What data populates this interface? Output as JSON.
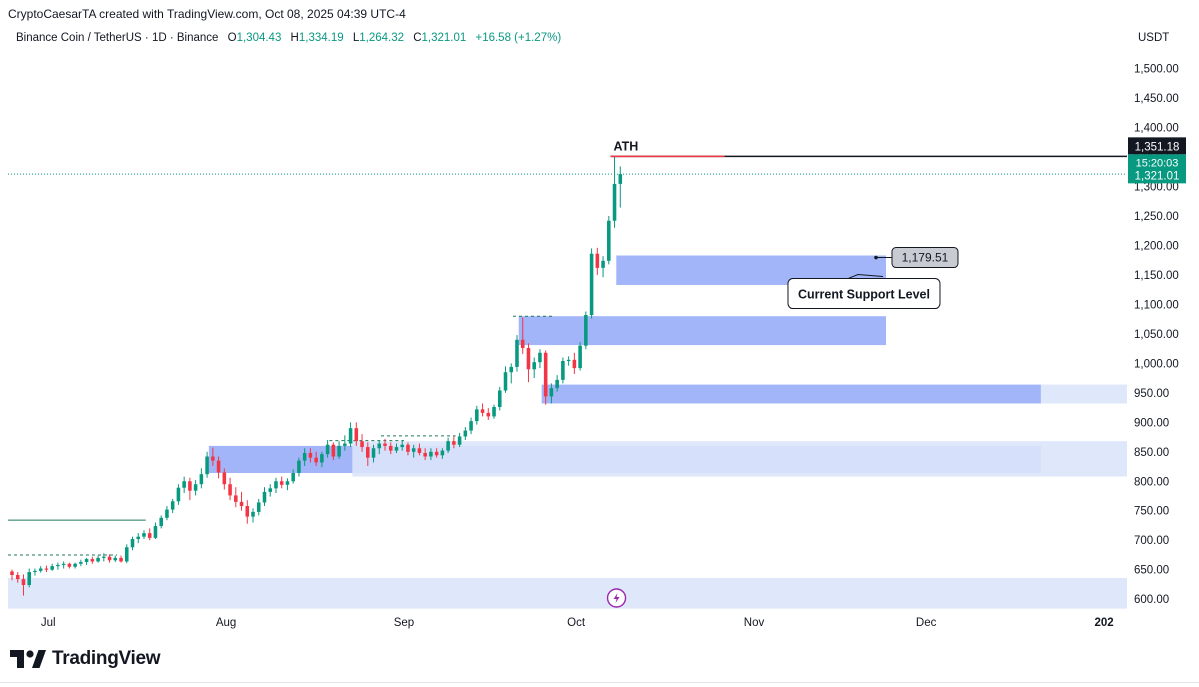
{
  "header": {
    "credit": "CryptoCaesarTA created with TradingView.com, Oct 08, 2025 04:39 UTC-4"
  },
  "symbol": {
    "name": "Binance Coin / TetherUS · 1D · Binance",
    "o_label": "O",
    "o": "1,304.43",
    "h_label": "H",
    "h": "1,334.19",
    "l_label": "L",
    "l": "1,264.32",
    "c_label": "C",
    "c": "1,321.01",
    "change": "+16.58 (+1.27%)"
  },
  "brand": {
    "logo_text": "TradingView"
  },
  "colors": {
    "up": "#089981",
    "down": "#f23645",
    "zone": "#6f8ef5",
    "zone_light": "#dbe4fb",
    "dark": "#131722"
  },
  "chart_data": {
    "type": "candlestick",
    "quote_unit": "USDT",
    "y_ticks": [
      "1,500.00",
      "1,450.00",
      "1,400.00",
      "1,350.00",
      "1,300.00",
      "1,250.00",
      "1,200.00",
      "1,150.00",
      "1,100.00",
      "1,050.00",
      "1,000.00",
      "950.00",
      "900.00",
      "850.00",
      "800.00",
      "750.00",
      "700.00",
      "650.00",
      "600.00"
    ],
    "y_tick_values": [
      1500,
      1450,
      1400,
      1350,
      1300,
      1250,
      1200,
      1150,
      1100,
      1050,
      1000,
      950,
      900,
      850,
      800,
      750,
      700,
      650,
      600
    ],
    "ylim": [
      585,
      1535
    ],
    "x_labels": [
      "Jul",
      "Aug",
      "Sep",
      "Oct",
      "Nov",
      "Dec",
      "202"
    ],
    "x_label_dates": [
      "2025-07-01",
      "2025-08-01",
      "2025-09-01",
      "2025-10-01",
      "2025-11-01",
      "2025-12-01",
      "2026-01-01"
    ],
    "x_range": [
      "2025-06-24",
      "2026-01-05"
    ],
    "start_date": "2025-06-24",
    "last_price_tag": {
      "price": "1,321.01",
      "countdown": "15:20:03",
      "value": 1321.01
    },
    "ath": {
      "label": "ATH",
      "tag": "1,351.18",
      "value": 1351.18,
      "from": "2025-10-07"
    },
    "support": {
      "label": "Current Support Level",
      "price_tag": "1,179.51",
      "value": 1179.51
    },
    "zones": [
      {
        "top": 1183,
        "bottom": 1133,
        "from": "2025-10-08",
        "to": "2025-11-24",
        "shade": "mid"
      },
      {
        "top": 1080,
        "bottom": 1031,
        "from": "2025-09-21",
        "to": "2025-11-24",
        "shade": "mid"
      },
      {
        "top": 964,
        "bottom": 932,
        "from": "2025-09-25",
        "to": "2025-12-21",
        "shade": "mid"
      },
      {
        "top": 964,
        "bottom": 932,
        "from": "2025-12-21",
        "to": "2026-01-05",
        "shade": "light"
      },
      {
        "top": 860,
        "bottom": 814,
        "from": "2025-07-29",
        "to": "2025-12-21",
        "shade": "mid"
      },
      {
        "top": 868,
        "bottom": 808,
        "from": "2025-08-23",
        "to": "2026-01-05",
        "shade": "light"
      },
      {
        "top": 636,
        "bottom": 584,
        "from": "2025-06-24",
        "to": "2026-01-05",
        "shade": "light"
      }
    ],
    "hlines": [
      {
        "value": 734,
        "from": "2025-06-24",
        "to": "2025-07-18",
        "style": "solid"
      },
      {
        "value": 675,
        "from": "2025-06-24",
        "to": "2025-07-13",
        "style": "dashed"
      },
      {
        "value": 1080,
        "from": "2025-09-20",
        "to": "2025-09-27",
        "style": "dashed"
      },
      {
        "value": 869,
        "from": "2025-08-19",
        "to": "2025-09-01",
        "style": "dashed"
      },
      {
        "value": 877,
        "from": "2025-08-28",
        "to": "2025-09-10",
        "style": "dashed"
      }
    ],
    "candles": [
      {
        "date": "2025-06-24",
        "o": 647,
        "h": 650,
        "l": 632,
        "c": 641
      },
      {
        "date": "2025-06-25",
        "o": 641,
        "h": 646,
        "l": 628,
        "c": 634
      },
      {
        "date": "2025-06-26",
        "o": 634,
        "h": 642,
        "l": 606,
        "c": 624
      },
      {
        "date": "2025-06-27",
        "o": 624,
        "h": 652,
        "l": 620,
        "c": 646
      },
      {
        "date": "2025-06-28",
        "o": 646,
        "h": 652,
        "l": 640,
        "c": 648
      },
      {
        "date": "2025-06-29",
        "o": 648,
        "h": 656,
        "l": 645,
        "c": 652
      },
      {
        "date": "2025-06-30",
        "o": 652,
        "h": 657,
        "l": 646,
        "c": 650
      },
      {
        "date": "2025-07-01",
        "o": 650,
        "h": 660,
        "l": 648,
        "c": 656
      },
      {
        "date": "2025-07-02",
        "o": 656,
        "h": 662,
        "l": 650,
        "c": 658
      },
      {
        "date": "2025-07-03",
        "o": 658,
        "h": 664,
        "l": 652,
        "c": 660
      },
      {
        "date": "2025-07-04",
        "o": 660,
        "h": 662,
        "l": 652,
        "c": 655
      },
      {
        "date": "2025-07-05",
        "o": 655,
        "h": 662,
        "l": 652,
        "c": 660
      },
      {
        "date": "2025-07-06",
        "o": 660,
        "h": 667,
        "l": 656,
        "c": 663
      },
      {
        "date": "2025-07-07",
        "o": 663,
        "h": 670,
        "l": 658,
        "c": 668
      },
      {
        "date": "2025-07-08",
        "o": 668,
        "h": 672,
        "l": 660,
        "c": 664
      },
      {
        "date": "2025-07-09",
        "o": 664,
        "h": 674,
        "l": 662,
        "c": 670
      },
      {
        "date": "2025-07-10",
        "o": 670,
        "h": 678,
        "l": 664,
        "c": 672
      },
      {
        "date": "2025-07-11",
        "o": 672,
        "h": 676,
        "l": 662,
        "c": 666
      },
      {
        "date": "2025-07-12",
        "o": 666,
        "h": 674,
        "l": 663,
        "c": 670
      },
      {
        "date": "2025-07-13",
        "o": 670,
        "h": 674,
        "l": 662,
        "c": 664
      },
      {
        "date": "2025-07-14",
        "o": 664,
        "h": 693,
        "l": 661,
        "c": 688
      },
      {
        "date": "2025-07-15",
        "o": 688,
        "h": 706,
        "l": 683,
        "c": 702
      },
      {
        "date": "2025-07-16",
        "o": 702,
        "h": 712,
        "l": 695,
        "c": 706
      },
      {
        "date": "2025-07-17",
        "o": 706,
        "h": 717,
        "l": 702,
        "c": 712
      },
      {
        "date": "2025-07-18",
        "o": 712,
        "h": 720,
        "l": 700,
        "c": 704
      },
      {
        "date": "2025-07-19",
        "o": 704,
        "h": 730,
        "l": 702,
        "c": 724
      },
      {
        "date": "2025-07-20",
        "o": 724,
        "h": 742,
        "l": 720,
        "c": 738
      },
      {
        "date": "2025-07-21",
        "o": 738,
        "h": 758,
        "l": 734,
        "c": 752
      },
      {
        "date": "2025-07-22",
        "o": 752,
        "h": 770,
        "l": 746,
        "c": 766
      },
      {
        "date": "2025-07-23",
        "o": 766,
        "h": 795,
        "l": 760,
        "c": 789
      },
      {
        "date": "2025-07-24",
        "o": 789,
        "h": 808,
        "l": 780,
        "c": 800
      },
      {
        "date": "2025-07-25",
        "o": 800,
        "h": 806,
        "l": 768,
        "c": 784
      },
      {
        "date": "2025-07-26",
        "o": 784,
        "h": 802,
        "l": 776,
        "c": 795
      },
      {
        "date": "2025-07-27",
        "o": 795,
        "h": 822,
        "l": 788,
        "c": 812
      },
      {
        "date": "2025-07-28",
        "o": 812,
        "h": 850,
        "l": 806,
        "c": 842
      },
      {
        "date": "2025-07-29",
        "o": 842,
        "h": 857,
        "l": 826,
        "c": 835
      },
      {
        "date": "2025-07-30",
        "o": 835,
        "h": 842,
        "l": 805,
        "c": 815
      },
      {
        "date": "2025-07-31",
        "o": 815,
        "h": 822,
        "l": 786,
        "c": 795
      },
      {
        "date": "2025-08-01",
        "o": 795,
        "h": 806,
        "l": 768,
        "c": 776
      },
      {
        "date": "2025-08-02",
        "o": 776,
        "h": 790,
        "l": 756,
        "c": 765
      },
      {
        "date": "2025-08-03",
        "o": 765,
        "h": 782,
        "l": 750,
        "c": 758
      },
      {
        "date": "2025-08-04",
        "o": 758,
        "h": 768,
        "l": 728,
        "c": 740
      },
      {
        "date": "2025-08-05",
        "o": 740,
        "h": 754,
        "l": 730,
        "c": 748
      },
      {
        "date": "2025-08-06",
        "o": 748,
        "h": 770,
        "l": 742,
        "c": 764
      },
      {
        "date": "2025-08-07",
        "o": 764,
        "h": 790,
        "l": 758,
        "c": 782
      },
      {
        "date": "2025-08-08",
        "o": 782,
        "h": 795,
        "l": 774,
        "c": 788
      },
      {
        "date": "2025-08-09",
        "o": 788,
        "h": 806,
        "l": 780,
        "c": 800
      },
      {
        "date": "2025-08-10",
        "o": 800,
        "h": 808,
        "l": 788,
        "c": 794
      },
      {
        "date": "2025-08-11",
        "o": 794,
        "h": 805,
        "l": 785,
        "c": 800
      },
      {
        "date": "2025-08-12",
        "o": 800,
        "h": 820,
        "l": 796,
        "c": 814
      },
      {
        "date": "2025-08-13",
        "o": 814,
        "h": 840,
        "l": 808,
        "c": 835
      },
      {
        "date": "2025-08-14",
        "o": 835,
        "h": 856,
        "l": 826,
        "c": 848
      },
      {
        "date": "2025-08-15",
        "o": 848,
        "h": 856,
        "l": 832,
        "c": 840
      },
      {
        "date": "2025-08-16",
        "o": 840,
        "h": 850,
        "l": 826,
        "c": 832
      },
      {
        "date": "2025-08-17",
        "o": 832,
        "h": 850,
        "l": 824,
        "c": 846
      },
      {
        "date": "2025-08-18",
        "o": 846,
        "h": 870,
        "l": 840,
        "c": 862
      },
      {
        "date": "2025-08-19",
        "o": 862,
        "h": 866,
        "l": 836,
        "c": 842
      },
      {
        "date": "2025-08-20",
        "o": 842,
        "h": 868,
        "l": 838,
        "c": 860
      },
      {
        "date": "2025-08-21",
        "o": 860,
        "h": 878,
        "l": 852,
        "c": 864
      },
      {
        "date": "2025-08-22",
        "o": 864,
        "h": 900,
        "l": 858,
        "c": 890
      },
      {
        "date": "2025-08-23",
        "o": 890,
        "h": 900,
        "l": 860,
        "c": 868
      },
      {
        "date": "2025-08-24",
        "o": 868,
        "h": 880,
        "l": 850,
        "c": 858
      },
      {
        "date": "2025-08-25",
        "o": 858,
        "h": 866,
        "l": 826,
        "c": 840
      },
      {
        "date": "2025-08-26",
        "o": 840,
        "h": 862,
        "l": 832,
        "c": 856
      },
      {
        "date": "2025-08-27",
        "o": 856,
        "h": 870,
        "l": 846,
        "c": 864
      },
      {
        "date": "2025-08-28",
        "o": 864,
        "h": 872,
        "l": 852,
        "c": 860
      },
      {
        "date": "2025-08-29",
        "o": 860,
        "h": 866,
        "l": 846,
        "c": 852
      },
      {
        "date": "2025-08-30",
        "o": 852,
        "h": 864,
        "l": 848,
        "c": 858
      },
      {
        "date": "2025-08-31",
        "o": 858,
        "h": 870,
        "l": 852,
        "c": 862
      },
      {
        "date": "2025-09-01",
        "o": 862,
        "h": 866,
        "l": 844,
        "c": 850
      },
      {
        "date": "2025-09-02",
        "o": 850,
        "h": 862,
        "l": 840,
        "c": 856
      },
      {
        "date": "2025-09-03",
        "o": 856,
        "h": 864,
        "l": 844,
        "c": 848
      },
      {
        "date": "2025-09-04",
        "o": 848,
        "h": 856,
        "l": 836,
        "c": 842
      },
      {
        "date": "2025-09-05",
        "o": 842,
        "h": 856,
        "l": 836,
        "c": 850
      },
      {
        "date": "2025-09-06",
        "o": 850,
        "h": 856,
        "l": 840,
        "c": 844
      },
      {
        "date": "2025-09-07",
        "o": 844,
        "h": 856,
        "l": 838,
        "c": 852
      },
      {
        "date": "2025-09-08",
        "o": 852,
        "h": 874,
        "l": 848,
        "c": 868
      },
      {
        "date": "2025-09-09",
        "o": 868,
        "h": 876,
        "l": 856,
        "c": 862
      },
      {
        "date": "2025-09-10",
        "o": 862,
        "h": 882,
        "l": 858,
        "c": 876
      },
      {
        "date": "2025-09-11",
        "o": 876,
        "h": 892,
        "l": 870,
        "c": 886
      },
      {
        "date": "2025-09-12",
        "o": 886,
        "h": 908,
        "l": 880,
        "c": 902
      },
      {
        "date": "2025-09-13",
        "o": 902,
        "h": 928,
        "l": 896,
        "c": 922
      },
      {
        "date": "2025-09-14",
        "o": 922,
        "h": 932,
        "l": 910,
        "c": 916
      },
      {
        "date": "2025-09-15",
        "o": 916,
        "h": 924,
        "l": 904,
        "c": 910
      },
      {
        "date": "2025-09-16",
        "o": 910,
        "h": 930,
        "l": 906,
        "c": 926
      },
      {
        "date": "2025-09-17",
        "o": 926,
        "h": 960,
        "l": 920,
        "c": 954
      },
      {
        "date": "2025-09-18",
        "o": 954,
        "h": 995,
        "l": 950,
        "c": 985
      },
      {
        "date": "2025-09-19",
        "o": 985,
        "h": 1000,
        "l": 966,
        "c": 994
      },
      {
        "date": "2025-09-20",
        "o": 994,
        "h": 1048,
        "l": 986,
        "c": 1040
      },
      {
        "date": "2025-09-21",
        "o": 1040,
        "h": 1078,
        "l": 1016,
        "c": 1026
      },
      {
        "date": "2025-09-22",
        "o": 1026,
        "h": 1034,
        "l": 968,
        "c": 990
      },
      {
        "date": "2025-09-23",
        "o": 990,
        "h": 1010,
        "l": 975,
        "c": 1002
      },
      {
        "date": "2025-09-24",
        "o": 1002,
        "h": 1024,
        "l": 992,
        "c": 1018
      },
      {
        "date": "2025-09-25",
        "o": 1018,
        "h": 1022,
        "l": 930,
        "c": 944
      },
      {
        "date": "2025-09-26",
        "o": 944,
        "h": 966,
        "l": 932,
        "c": 958
      },
      {
        "date": "2025-09-27",
        "o": 958,
        "h": 980,
        "l": 952,
        "c": 972
      },
      {
        "date": "2025-09-28",
        "o": 972,
        "h": 1010,
        "l": 966,
        "c": 1004
      },
      {
        "date": "2025-09-29",
        "o": 1004,
        "h": 1012,
        "l": 996,
        "c": 1006
      },
      {
        "date": "2025-09-30",
        "o": 1006,
        "h": 1018,
        "l": 982,
        "c": 992
      },
      {
        "date": "2025-10-01",
        "o": 992,
        "h": 1036,
        "l": 988,
        "c": 1030
      },
      {
        "date": "2025-10-02",
        "o": 1030,
        "h": 1088,
        "l": 1024,
        "c": 1082
      },
      {
        "date": "2025-10-03",
        "o": 1082,
        "h": 1195,
        "l": 1076,
        "c": 1186
      },
      {
        "date": "2025-10-04",
        "o": 1186,
        "h": 1196,
        "l": 1150,
        "c": 1162
      },
      {
        "date": "2025-10-05",
        "o": 1162,
        "h": 1182,
        "l": 1146,
        "c": 1174
      },
      {
        "date": "2025-10-06",
        "o": 1174,
        "h": 1250,
        "l": 1168,
        "c": 1242
      },
      {
        "date": "2025-10-07",
        "o": 1242,
        "h": 1351.18,
        "l": 1230,
        "c": 1304.43
      },
      {
        "date": "2025-10-08",
        "o": 1304.43,
        "h": 1334.19,
        "l": 1264.32,
        "c": 1321.01
      }
    ]
  }
}
